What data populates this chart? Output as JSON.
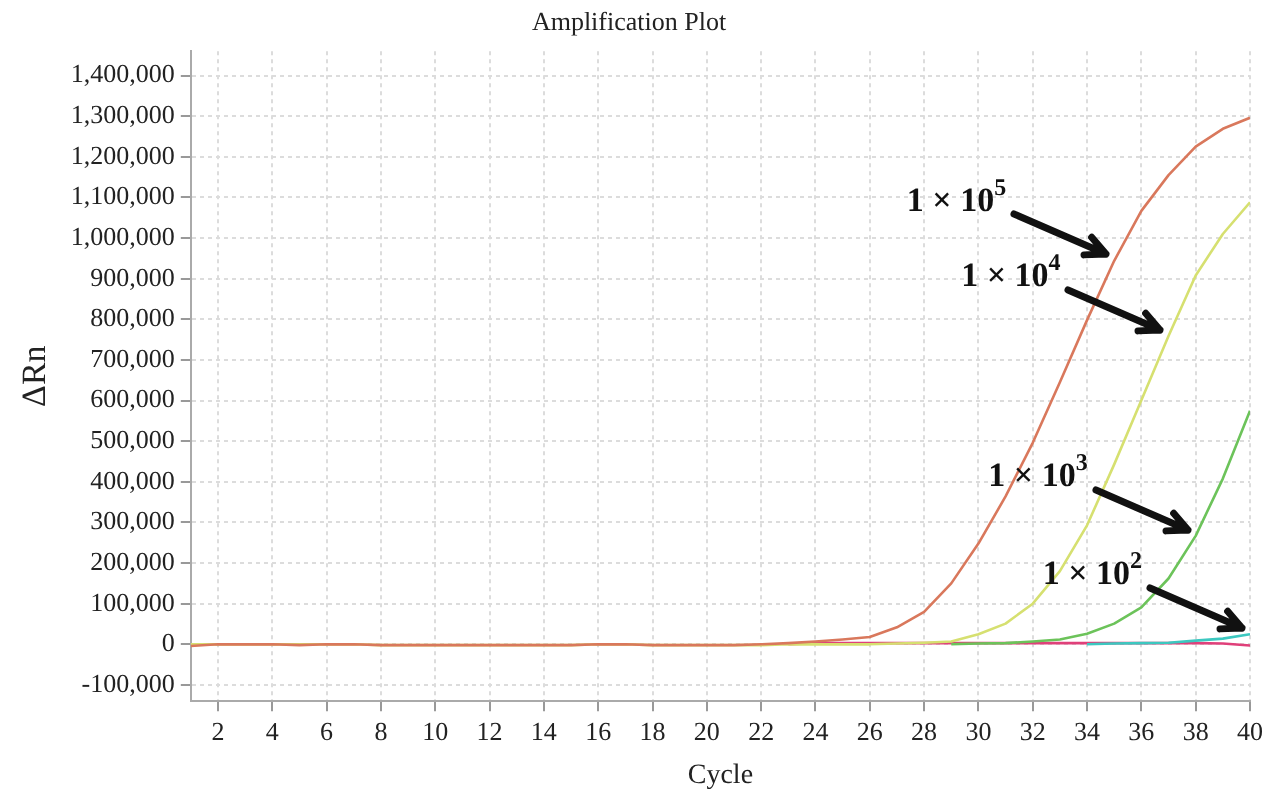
{
  "chart_data": {
    "type": "line",
    "title": "Amplification Plot",
    "xlabel": "Cycle",
    "ylabel": "ΔRn",
    "x": [
      1,
      2,
      3,
      4,
      5,
      6,
      7,
      8,
      9,
      10,
      11,
      12,
      13,
      14,
      15,
      16,
      17,
      18,
      19,
      20,
      21,
      22,
      23,
      24,
      25,
      26,
      27,
      28,
      29,
      30,
      31,
      32,
      33,
      34,
      35,
      36,
      37,
      38,
      39,
      40
    ],
    "series": [
      {
        "color": "#d9785c",
        "values": [
          -4000,
          0,
          0,
          0,
          -2000,
          0,
          0,
          -2000,
          -2000,
          -2000,
          -2000,
          -2000,
          -2000,
          -2000,
          -2000,
          0,
          0,
          -2000,
          -2000,
          -2000,
          -2000,
          0,
          3000,
          7000,
          12000,
          18000,
          42000,
          80000,
          150000,
          248000,
          364000,
          496000,
          645000,
          798000,
          944000,
          1067000,
          1155000,
          1225000,
          1269000,
          1296000
        ]
      },
      {
        "color": "#d6e070",
        "values": [
          0,
          0,
          0,
          0,
          0,
          0,
          0,
          -2000,
          -2000,
          -2000,
          -2000,
          -2000,
          -2000,
          -2000,
          -2000,
          0,
          0,
          -2000,
          -2000,
          -2000,
          -2000,
          -2000,
          0,
          0,
          0,
          0,
          2000,
          4000,
          7000,
          25000,
          51000,
          100000,
          180000,
          293000,
          443000,
          601000,
          759000,
          908000,
          1010000,
          1088000
        ]
      },
      {
        "color": "#6cc35a",
        "values": [
          null,
          null,
          null,
          null,
          null,
          null,
          null,
          null,
          null,
          null,
          null,
          null,
          null,
          null,
          null,
          null,
          null,
          null,
          null,
          null,
          null,
          null,
          null,
          null,
          null,
          null,
          null,
          null,
          0,
          2000,
          3000,
          7000,
          12000,
          26000,
          51000,
          91000,
          162000,
          267000,
          408000,
          575000
        ]
      },
      {
        "color": "#3cc8c0",
        "values": [
          null,
          null,
          null,
          null,
          null,
          null,
          null,
          null,
          null,
          null,
          null,
          null,
          null,
          null,
          null,
          null,
          null,
          null,
          null,
          null,
          null,
          null,
          null,
          null,
          null,
          null,
          null,
          null,
          null,
          null,
          null,
          null,
          null,
          0,
          2000,
          3000,
          4000,
          9000,
          14000,
          25000
        ]
      },
      {
        "color": "#e0407a",
        "values": [
          null,
          null,
          null,
          null,
          null,
          null,
          null,
          null,
          null,
          null,
          null,
          null,
          null,
          null,
          null,
          null,
          null,
          null,
          null,
          null,
          null,
          null,
          0,
          3000,
          3000,
          3000,
          3000,
          3000,
          3000,
          3000,
          3000,
          3000,
          3000,
          3000,
          3000,
          3000,
          3000,
          3000,
          2000,
          -3000
        ]
      }
    ],
    "xlim": [
      1,
      40
    ],
    "xticks": [
      2,
      4,
      6,
      8,
      10,
      12,
      14,
      16,
      18,
      20,
      22,
      24,
      26,
      28,
      30,
      32,
      34,
      36,
      38,
      40
    ],
    "ylim": [
      -140000,
      1460000
    ],
    "yticks": [
      {
        "value": -100000,
        "label": "-100,000"
      },
      0,
      {
        "value": 100000,
        "label": "100,000"
      },
      {
        "value": 200000,
        "label": "200,000"
      },
      {
        "value": 300000,
        "label": "300,000"
      },
      {
        "value": 400000,
        "label": "400,000"
      },
      {
        "value": 500000,
        "label": "500,000"
      },
      {
        "value": 600000,
        "label": "600,000"
      },
      {
        "value": 700000,
        "label": "700,000"
      },
      {
        "value": 800000,
        "label": "800,000"
      },
      {
        "value": 900000,
        "label": "900,000"
      },
      {
        "value": 1000000,
        "label": "1,000,000"
      },
      {
        "value": 1100000,
        "label": "1,100,000"
      },
      {
        "value": 1200000,
        "label": "1,200,000"
      },
      {
        "value": 1300000,
        "label": "1,300,000"
      },
      {
        "value": 1400000,
        "label": "1,400,000"
      }
    ],
    "grid": true,
    "legend": false,
    "marker": "none",
    "line_style": "solid",
    "annotations": [
      {
        "text": "1 × 10$^{5}$",
        "x": 35,
        "y": 944000
      },
      {
        "text": "1 × 10$^{4}$",
        "x": 37,
        "y": 759000
      },
      {
        "text": "1 × 10$^{3}$",
        "x": 38,
        "y": 267000
      },
      {
        "text": "1 × 10$^{2}$",
        "x": 40,
        "y": 25000
      }
    ]
  }
}
